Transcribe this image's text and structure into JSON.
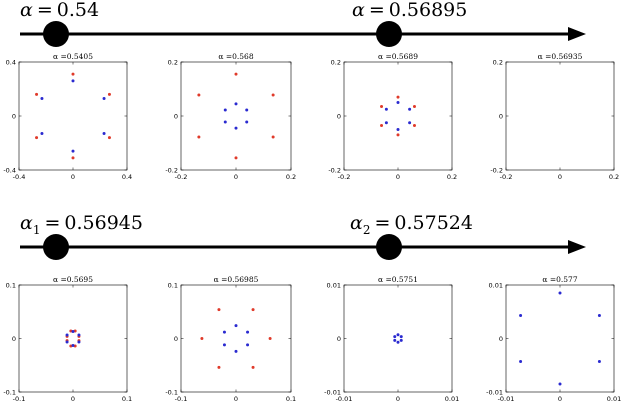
{
  "timelines": [
    {
      "markers": [
        {
          "symbol": "α",
          "subscript": "",
          "value": "0.54"
        },
        {
          "symbol": "α",
          "subscript": "",
          "value": "0.56895"
        }
      ]
    },
    {
      "markers": [
        {
          "symbol": "α",
          "subscript": "1",
          "value": "0.56945"
        },
        {
          "symbol": "α",
          "subscript": "2",
          "value": "0.57524"
        }
      ]
    }
  ],
  "panels": [
    {
      "title": "α =0.5405",
      "xlim": [
        -0.4,
        0.4
      ],
      "ylim": [
        -0.4,
        0.4
      ],
      "xticks": [
        "-0.4",
        "0",
        "0.4"
      ],
      "yticks": [
        "0.4",
        "0",
        "-0.4"
      ],
      "xtick_vals": [
        -0.4,
        0,
        0.4
      ],
      "ytick_vals": [
        0.4,
        0,
        -0.4
      ],
      "series": [
        {
          "name": "red",
          "color": "#e03a2a",
          "points": [
            [
              0.0,
              0.31
            ],
            [
              0.0,
              -0.31
            ],
            [
              -0.27,
              0.16
            ],
            [
              0.27,
              0.16
            ],
            [
              -0.27,
              -0.16
            ],
            [
              0.27,
              -0.16
            ]
          ]
        },
        {
          "name": "blue",
          "color": "#2a2ad0",
          "points": [
            [
              0.0,
              0.26
            ],
            [
              0.0,
              -0.26
            ],
            [
              -0.23,
              0.13
            ],
            [
              0.23,
              0.13
            ],
            [
              -0.23,
              -0.13
            ],
            [
              0.23,
              -0.13
            ]
          ]
        }
      ]
    },
    {
      "title": "α =0.568",
      "xlim": [
        -0.2,
        0.2
      ],
      "ylim": [
        -0.2,
        0.2
      ],
      "xticks": [
        "-0.2",
        "0",
        "0.2"
      ],
      "yticks": [
        "0.2",
        "0",
        "-0.2"
      ],
      "xtick_vals": [
        -0.2,
        0,
        0.2
      ],
      "ytick_vals": [
        0.2,
        0,
        -0.2
      ],
      "series": [
        {
          "name": "red",
          "color": "#e03a2a",
          "points": [
            [
              0.0,
              0.155
            ],
            [
              0.0,
              -0.155
            ],
            [
              -0.135,
              0.078
            ],
            [
              0.135,
              0.078
            ],
            [
              -0.135,
              -0.078
            ],
            [
              0.135,
              -0.078
            ]
          ]
        },
        {
          "name": "blue",
          "color": "#2a2ad0",
          "points": [
            [
              0.0,
              0.045
            ],
            [
              0.0,
              -0.045
            ],
            [
              -0.039,
              0.022
            ],
            [
              0.039,
              0.022
            ],
            [
              -0.039,
              -0.022
            ],
            [
              0.039,
              -0.022
            ]
          ]
        }
      ]
    },
    {
      "title": "α =0.5689",
      "xlim": [
        -0.2,
        0.2
      ],
      "ylim": [
        -0.2,
        0.2
      ],
      "xticks": [
        "-0.2",
        "0",
        "0.2"
      ],
      "yticks": [
        "0.2",
        "0",
        "-0.2"
      ],
      "xtick_vals": [
        -0.2,
        0,
        0.2
      ],
      "ytick_vals": [
        0.2,
        0,
        -0.2
      ],
      "series": [
        {
          "name": "red",
          "color": "#e03a2a",
          "points": [
            [
              0.0,
              0.07
            ],
            [
              0.0,
              -0.07
            ],
            [
              -0.061,
              0.035
            ],
            [
              0.061,
              0.035
            ],
            [
              -0.061,
              -0.035
            ],
            [
              0.061,
              -0.035
            ]
          ]
        },
        {
          "name": "blue",
          "color": "#2a2ad0",
          "points": [
            [
              0.0,
              0.05
            ],
            [
              0.0,
              -0.05
            ],
            [
              -0.043,
              0.025
            ],
            [
              0.043,
              0.025
            ],
            [
              -0.043,
              -0.025
            ],
            [
              0.043,
              -0.025
            ]
          ]
        }
      ]
    },
    {
      "title": "α =0.56935",
      "xlim": [
        -0.2,
        0.2
      ],
      "ylim": [
        -0.2,
        0.2
      ],
      "xticks": [
        "-0.2",
        "0",
        "0.2"
      ],
      "yticks": [
        "0.2",
        "0",
        "-0.2"
      ],
      "xtick_vals": [
        -0.2,
        0,
        0.2
      ],
      "ytick_vals": [
        0.2,
        0,
        -0.2
      ],
      "series": []
    },
    {
      "title": "α =0.5695",
      "xlim": [
        -0.1,
        0.1
      ],
      "ylim": [
        -0.1,
        0.1
      ],
      "xticks": [
        "-0.1",
        "0",
        "0.1"
      ],
      "yticks": [
        "0.1",
        "0",
        "-0.1"
      ],
      "xtick_vals": [
        -0.1,
        0,
        0.1
      ],
      "ytick_vals": [
        0.1,
        0,
        -0.1
      ],
      "series": [
        {
          "name": "red",
          "color": "#e03a2a",
          "points": [
            [
              -0.004,
              0.014
            ],
            [
              0.004,
              0.014
            ],
            [
              0.011,
              0.004
            ],
            [
              0.011,
              -0.004
            ],
            [
              0.004,
              -0.014
            ],
            [
              -0.004,
              -0.014
            ],
            [
              -0.011,
              -0.004
            ],
            [
              -0.011,
              0.004
            ]
          ]
        },
        {
          "name": "blue",
          "color": "#2a2ad0",
          "points": [
            [
              0.0,
              0.013
            ],
            [
              0.0,
              -0.013
            ],
            [
              -0.011,
              0.0065
            ],
            [
              0.011,
              0.0065
            ],
            [
              -0.011,
              -0.0065
            ],
            [
              0.011,
              -0.0065
            ]
          ]
        }
      ]
    },
    {
      "title": "α =0.56985",
      "xlim": [
        -0.1,
        0.1
      ],
      "ylim": [
        -0.1,
        0.1
      ],
      "xticks": [
        "-0.1",
        "0",
        "0.1"
      ],
      "yticks": [
        "0.1",
        "0",
        "-0.1"
      ],
      "xtick_vals": [
        -0.1,
        0,
        0.1
      ],
      "ytick_vals": [
        0.1,
        0,
        -0.1
      ],
      "series": [
        {
          "name": "red",
          "color": "#e03a2a",
          "points": [
            [
              -0.031,
              0.054
            ],
            [
              0.031,
              0.054
            ],
            [
              0.062,
              0.0
            ],
            [
              -0.062,
              0.0
            ],
            [
              -0.031,
              -0.054
            ],
            [
              0.031,
              -0.054
            ]
          ]
        },
        {
          "name": "blue",
          "color": "#2a2ad0",
          "points": [
            [
              0.0,
              0.024
            ],
            [
              0.0,
              -0.024
            ],
            [
              -0.021,
              0.012
            ],
            [
              0.021,
              0.012
            ],
            [
              -0.021,
              -0.012
            ],
            [
              0.021,
              -0.012
            ]
          ]
        }
      ]
    },
    {
      "title": "α =0.5751",
      "xlim": [
        -0.01,
        0.01
      ],
      "ylim": [
        -0.01,
        0.01
      ],
      "xticks": [
        "-0.01",
        "0",
        "0.01"
      ],
      "yticks": [
        "0.01",
        "0",
        "-0.01"
      ],
      "xtick_vals": [
        -0.01,
        0,
        0.01
      ],
      "ytick_vals": [
        0.01,
        0,
        -0.01
      ],
      "series": [
        {
          "name": "blue",
          "color": "#2a2ad0",
          "points": [
            [
              0.0,
              0.0007
            ],
            [
              0.0,
              -0.0007
            ],
            [
              -0.0006,
              0.00035
            ],
            [
              0.0006,
              0.00035
            ],
            [
              -0.0006,
              -0.00035
            ],
            [
              0.0006,
              -0.00035
            ]
          ]
        }
      ]
    },
    {
      "title": "α =0.577",
      "xlim": [
        -0.01,
        0.01
      ],
      "ylim": [
        -0.01,
        0.01
      ],
      "xticks": [
        "-0.01",
        "0",
        "0.01"
      ],
      "yticks": [
        "0.01",
        "0",
        "-0.01"
      ],
      "xtick_vals": [
        -0.01,
        0,
        0.01
      ],
      "ytick_vals": [
        0.01,
        0,
        -0.01
      ],
      "series": [
        {
          "name": "blue",
          "color": "#2a2ad0",
          "points": [
            [
              0.0,
              0.0085
            ],
            [
              0.0,
              -0.0085
            ],
            [
              -0.0073,
              0.0043
            ],
            [
              0.0073,
              0.0043
            ],
            [
              -0.0073,
              -0.0043
            ],
            [
              0.0073,
              -0.0043
            ]
          ]
        }
      ]
    }
  ]
}
